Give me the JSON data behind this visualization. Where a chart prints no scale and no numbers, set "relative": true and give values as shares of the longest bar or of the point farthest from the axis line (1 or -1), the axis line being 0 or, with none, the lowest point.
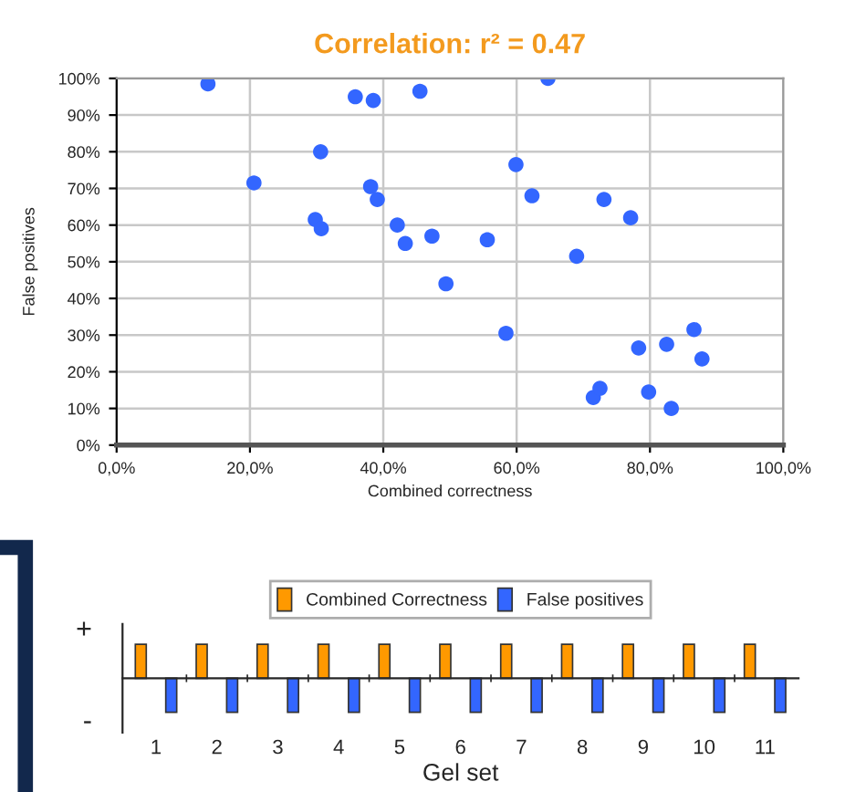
{
  "chart_data": [
    {
      "type": "scatter",
      "title": "Correlation: r² = 0.47",
      "xlabel": "Combined correctness",
      "ylabel": "False positives",
      "x": [
        13.7,
        20.6,
        30.6,
        29.8,
        30.7,
        35.8,
        38.5,
        38.1,
        39.1,
        42.1,
        43.3,
        45.5,
        47.3,
        49.4,
        55.6,
        58.4,
        59.9,
        62.3,
        64.7,
        69,
        73.1,
        77.1,
        71.5,
        72.5,
        78.3,
        79.8,
        82.5,
        83.2,
        86.6,
        87.8
      ],
      "series": [
        {
          "color": "#3366ff",
          "values": [
            98.5,
            71.5,
            80,
            61.5,
            59,
            95,
            94,
            70.5,
            67,
            60,
            55,
            96.5,
            57,
            44,
            56,
            30.5,
            76.5,
            68,
            100,
            51.5,
            67,
            62,
            13,
            15.5,
            26.5,
            14.5,
            27.5,
            10,
            31.5,
            23.5
          ]
        }
      ],
      "marker": "circle",
      "grid": true,
      "xlim": [
        0,
        100
      ],
      "xticks": [
        {
          "value": 0,
          "label": "0,0%"
        },
        {
          "value": 20,
          "label": "20,0%"
        },
        {
          "value": 40,
          "label": "40,0%"
        },
        {
          "value": 60,
          "label": "60,0%"
        },
        {
          "value": 80,
          "label": "80,0%"
        },
        {
          "value": 100,
          "label": "100,0%"
        }
      ],
      "ylim": [
        0,
        100
      ],
      "yticks": [
        {
          "value": 0,
          "label": "0%"
        },
        {
          "value": 10,
          "label": "10%"
        },
        {
          "value": 20,
          "label": "20%"
        },
        {
          "value": 30,
          "label": "30%"
        },
        {
          "value": 40,
          "label": "40%"
        },
        {
          "value": 50,
          "label": "50%"
        },
        {
          "value": 60,
          "label": "60%"
        },
        {
          "value": 70,
          "label": "70%"
        },
        {
          "value": 80,
          "label": "80%"
        },
        {
          "value": 90,
          "label": "90%"
        },
        {
          "value": 100,
          "label": "100%"
        }
      ]
    },
    {
      "type": "bar",
      "relative": true,
      "xlabel": "Gel set",
      "legend": "top",
      "categories": [
        "1",
        "2",
        "3",
        "4",
        "5",
        "6",
        "7",
        "8",
        "9",
        "10",
        "11"
      ],
      "series": [
        {
          "name": "Combined Correctness",
          "color": "#ff9900",
          "values": [
            1,
            1,
            1,
            1,
            1,
            1,
            1,
            1,
            1,
            1,
            1
          ]
        },
        {
          "name": "False positives",
          "color": "#3366ff",
          "values": [
            -1,
            -1,
            -1,
            -1,
            -1,
            -1,
            -1,
            -1,
            -1,
            -1,
            -1
          ]
        }
      ],
      "annotations": [
        "+",
        "-"
      ]
    }
  ]
}
